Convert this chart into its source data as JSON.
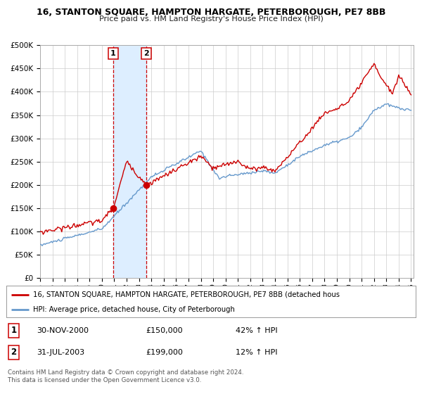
{
  "title": "16, STANTON SQUARE, HAMPTON HARGATE, PETERBOROUGH, PE7 8BB",
  "subtitle": "Price paid vs. HM Land Registry's House Price Index (HPI)",
  "legend_line1": "16, STANTON SQUARE, HAMPTON HARGATE, PETERBOROUGH, PE7 8BB (detached hous",
  "legend_line2": "HPI: Average price, detached house, City of Peterborough",
  "annotation1_date": "30-NOV-2000",
  "annotation1_price": "£150,000",
  "annotation1_hpi": "42% ↑ HPI",
  "annotation2_date": "31-JUL-2003",
  "annotation2_price": "£199,000",
  "annotation2_hpi": "12% ↑ HPI",
  "footnote1": "Contains HM Land Registry data © Crown copyright and database right 2024.",
  "footnote2": "This data is licensed under the Open Government Licence v3.0.",
  "sale1_year": 2000.917,
  "sale1_value": 150000,
  "sale2_year": 2003.583,
  "sale2_value": 199000,
  "red_line_color": "#cc0000",
  "blue_line_color": "#6699cc",
  "shade_color": "#ddeeff",
  "vline_color": "#cc0000",
  "grid_color": "#cccccc",
  "background_color": "#ffffff",
  "ylim": [
    0,
    500000
  ],
  "yticks": [
    0,
    50000,
    100000,
    150000,
    200000,
    250000,
    300000,
    350000,
    400000,
    450000,
    500000
  ]
}
